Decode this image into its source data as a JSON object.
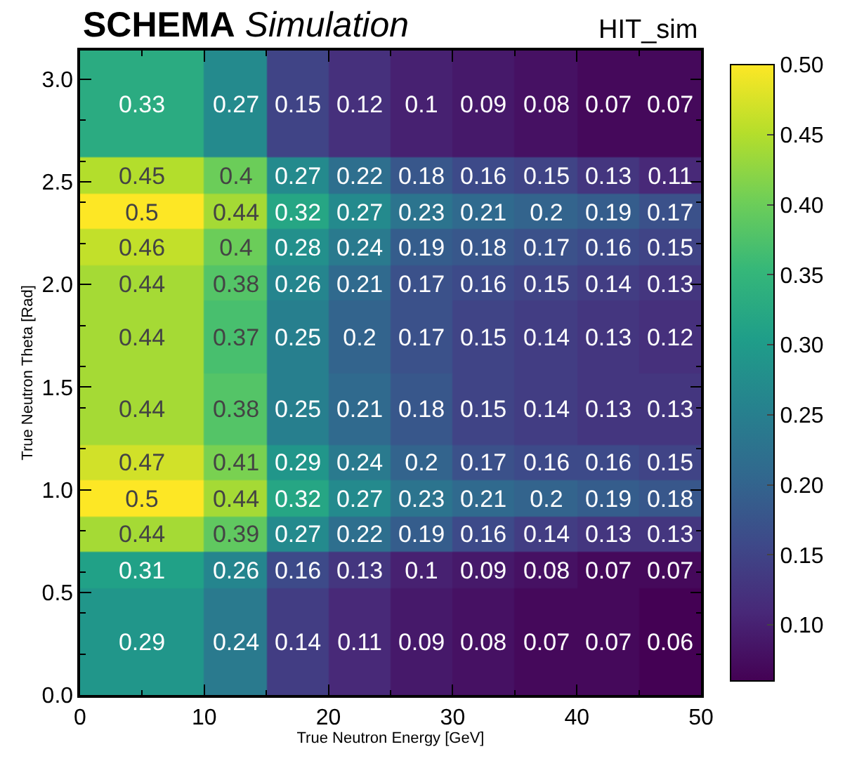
{
  "chart_data": {
    "type": "heatmap",
    "title": "SCHEMA",
    "subtitle": "Simulation",
    "annotations": [
      "HIT_sim"
    ],
    "xlabel": "True Neutron Energy [GeV]",
    "ylabel": "True Neutron Theta [Rad]",
    "x": [
      5,
      12.5,
      17.5,
      22.5,
      27.5,
      32.5,
      37.5,
      42.5,
      47.5
    ],
    "y": [
      2.88,
      2.53,
      2.355,
      2.18,
      2.005,
      1.745,
      1.395,
      1.135,
      0.96,
      0.785,
      0.61,
      0.26
    ],
    "cells": [
      [
        0.33,
        0.27,
        0.15,
        0.12,
        0.1,
        0.09,
        0.08,
        0.07,
        0.07
      ],
      [
        0.45,
        0.4,
        0.27,
        0.22,
        0.18,
        0.16,
        0.15,
        0.13,
        0.11
      ],
      [
        0.5,
        0.44,
        0.32,
        0.27,
        0.23,
        0.21,
        0.2,
        0.19,
        0.17
      ],
      [
        0.46,
        0.4,
        0.28,
        0.24,
        0.19,
        0.18,
        0.17,
        0.16,
        0.15
      ],
      [
        0.44,
        0.38,
        0.26,
        0.21,
        0.17,
        0.16,
        0.15,
        0.14,
        0.13
      ],
      [
        0.44,
        0.37,
        0.25,
        0.2,
        0.17,
        0.15,
        0.14,
        0.13,
        0.12
      ],
      [
        0.44,
        0.38,
        0.25,
        0.21,
        0.18,
        0.15,
        0.14,
        0.13,
        0.13
      ],
      [
        0.47,
        0.41,
        0.29,
        0.24,
        0.2,
        0.17,
        0.16,
        0.16,
        0.15
      ],
      [
        0.5,
        0.44,
        0.32,
        0.27,
        0.23,
        0.21,
        0.2,
        0.19,
        0.18
      ],
      [
        0.44,
        0.39,
        0.27,
        0.22,
        0.19,
        0.16,
        0.14,
        0.13,
        0.13
      ],
      [
        0.31,
        0.26,
        0.16,
        0.13,
        0.1,
        0.09,
        0.08,
        0.07,
        0.07
      ],
      [
        0.29,
        0.24,
        0.14,
        0.11,
        0.09,
        0.08,
        0.07,
        0.07,
        0.06
      ]
    ],
    "xlim": [
      0,
      50
    ],
    "xticks": [
      0,
      10,
      20,
      30,
      40,
      50
    ],
    "ylim": [
      0,
      3.14
    ],
    "yticks": [
      {
        "value": 0,
        "label": "0.0"
      },
      {
        "value": 0.5,
        "label": "0.5"
      },
      {
        "value": 1.0,
        "label": "1.0"
      },
      {
        "value": 1.5,
        "label": "1.5"
      },
      {
        "value": 2.0,
        "label": "2.0"
      },
      {
        "value": 2.5,
        "label": "2.5"
      },
      {
        "value": 3.0,
        "label": "3.0"
      }
    ],
    "clim": [
      0.06,
      0.5
    ],
    "cticks": [
      {
        "value": 0.1,
        "label": "0.10"
      },
      {
        "value": 0.15,
        "label": "0.15"
      },
      {
        "value": 0.2,
        "label": "0.20"
      },
      {
        "value": 0.25,
        "label": "0.25"
      },
      {
        "value": 0.3,
        "label": "0.30"
      },
      {
        "value": 0.35,
        "label": "0.35"
      },
      {
        "value": 0.4,
        "label": "0.40"
      },
      {
        "value": 0.45,
        "label": "0.45"
      },
      {
        "value": 0.5,
        "label": "0.50"
      }
    ],
    "data_labels": true
  }
}
